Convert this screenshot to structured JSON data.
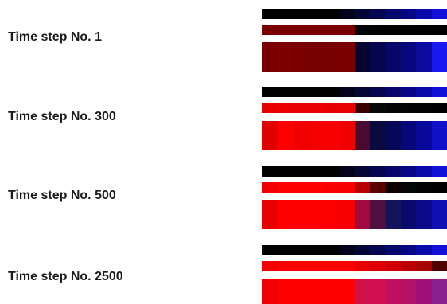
{
  "steps": [
    {
      "label": "Time step No. 1",
      "rows": [
        [
          "#000000",
          "#000000",
          "#000000",
          "#000000",
          "#000000",
          "#03031c",
          "#050536",
          "#060650",
          "#07076b",
          "#070785",
          "#0a0aa8",
          "#1010d8"
        ],
        [
          "#7a0000",
          "#7a0000",
          "#7a0000",
          "#7a0000",
          "#7a0000",
          "#7a0000",
          "#050505",
          "#030303",
          "#020202",
          "#020202",
          "#010101",
          "#000000"
        ],
        [
          "#7a0000",
          "#7e0000",
          "#7a0000",
          "#760000",
          "#7a0000",
          "#7a0000",
          "#05052e",
          "#06064e",
          "#07076a",
          "#07077e",
          "#0b0ba0",
          "#1a1af0"
        ]
      ]
    },
    {
      "label": "Time step No. 300",
      "rows": [
        [
          "#000000",
          "#000000",
          "#000000",
          "#000000",
          "#000000",
          "#03031c",
          "#050536",
          "#060650",
          "#07076b",
          "#070785",
          "#0a0aa8",
          "#1010d8"
        ],
        [
          "#e60000",
          "#ee0000",
          "#ee0000",
          "#ee0000",
          "#e60000",
          "#ea0000",
          "#3a0000",
          "#080808",
          "#040404",
          "#030303",
          "#020202",
          "#000000"
        ],
        [
          "#e00000",
          "#ff0000",
          "#f00000",
          "#f40000",
          "#f80000",
          "#f00000",
          "#4a0a30",
          "#0a0a3e",
          "#07075a",
          "#07077a",
          "#08089a",
          "#1010c8"
        ]
      ]
    },
    {
      "label": "Time step No. 500",
      "rows": [
        [
          "#000000",
          "#000000",
          "#000000",
          "#000000",
          "#000000",
          "#03031c",
          "#050536",
          "#060650",
          "#07076b",
          "#070785",
          "#0a0aa8",
          "#1010d8"
        ],
        [
          "#f00000",
          "#ff0000",
          "#ff0000",
          "#ff0000",
          "#f80000",
          "#f80000",
          "#b80000",
          "#5a0000",
          "#0e0000",
          "#050505",
          "#020202",
          "#000000"
        ],
        [
          "#e80000",
          "#ff0000",
          "#ff0000",
          "#ff0000",
          "#fa0000",
          "#f80000",
          "#a00a40",
          "#50103e",
          "#14145a",
          "#0a0a6a",
          "#0a0a8a",
          "#1010b0"
        ]
      ]
    },
    {
      "label": "Time step No. 2500",
      "rows": [
        [
          "#000000",
          "#000000",
          "#000000",
          "#000000",
          "#000000",
          "#03031c",
          "#050536",
          "#060650",
          "#07076b",
          "#070785",
          "#0a0aa8",
          "#1010d8"
        ],
        [
          "#f40000",
          "#ff0000",
          "#ff0000",
          "#ff0000",
          "#ff0000",
          "#ff0000",
          "#e60000",
          "#dc0000",
          "#d00000",
          "#bb0000",
          "#a80000",
          "#500000"
        ],
        [
          "#f00000",
          "#ff0000",
          "#ff0000",
          "#ff0000",
          "#ff0000",
          "#ff0000",
          "#d01048",
          "#d01050",
          "#c01060",
          "#b41068",
          "#a01078",
          "#8a2090"
        ]
      ]
    }
  ]
}
